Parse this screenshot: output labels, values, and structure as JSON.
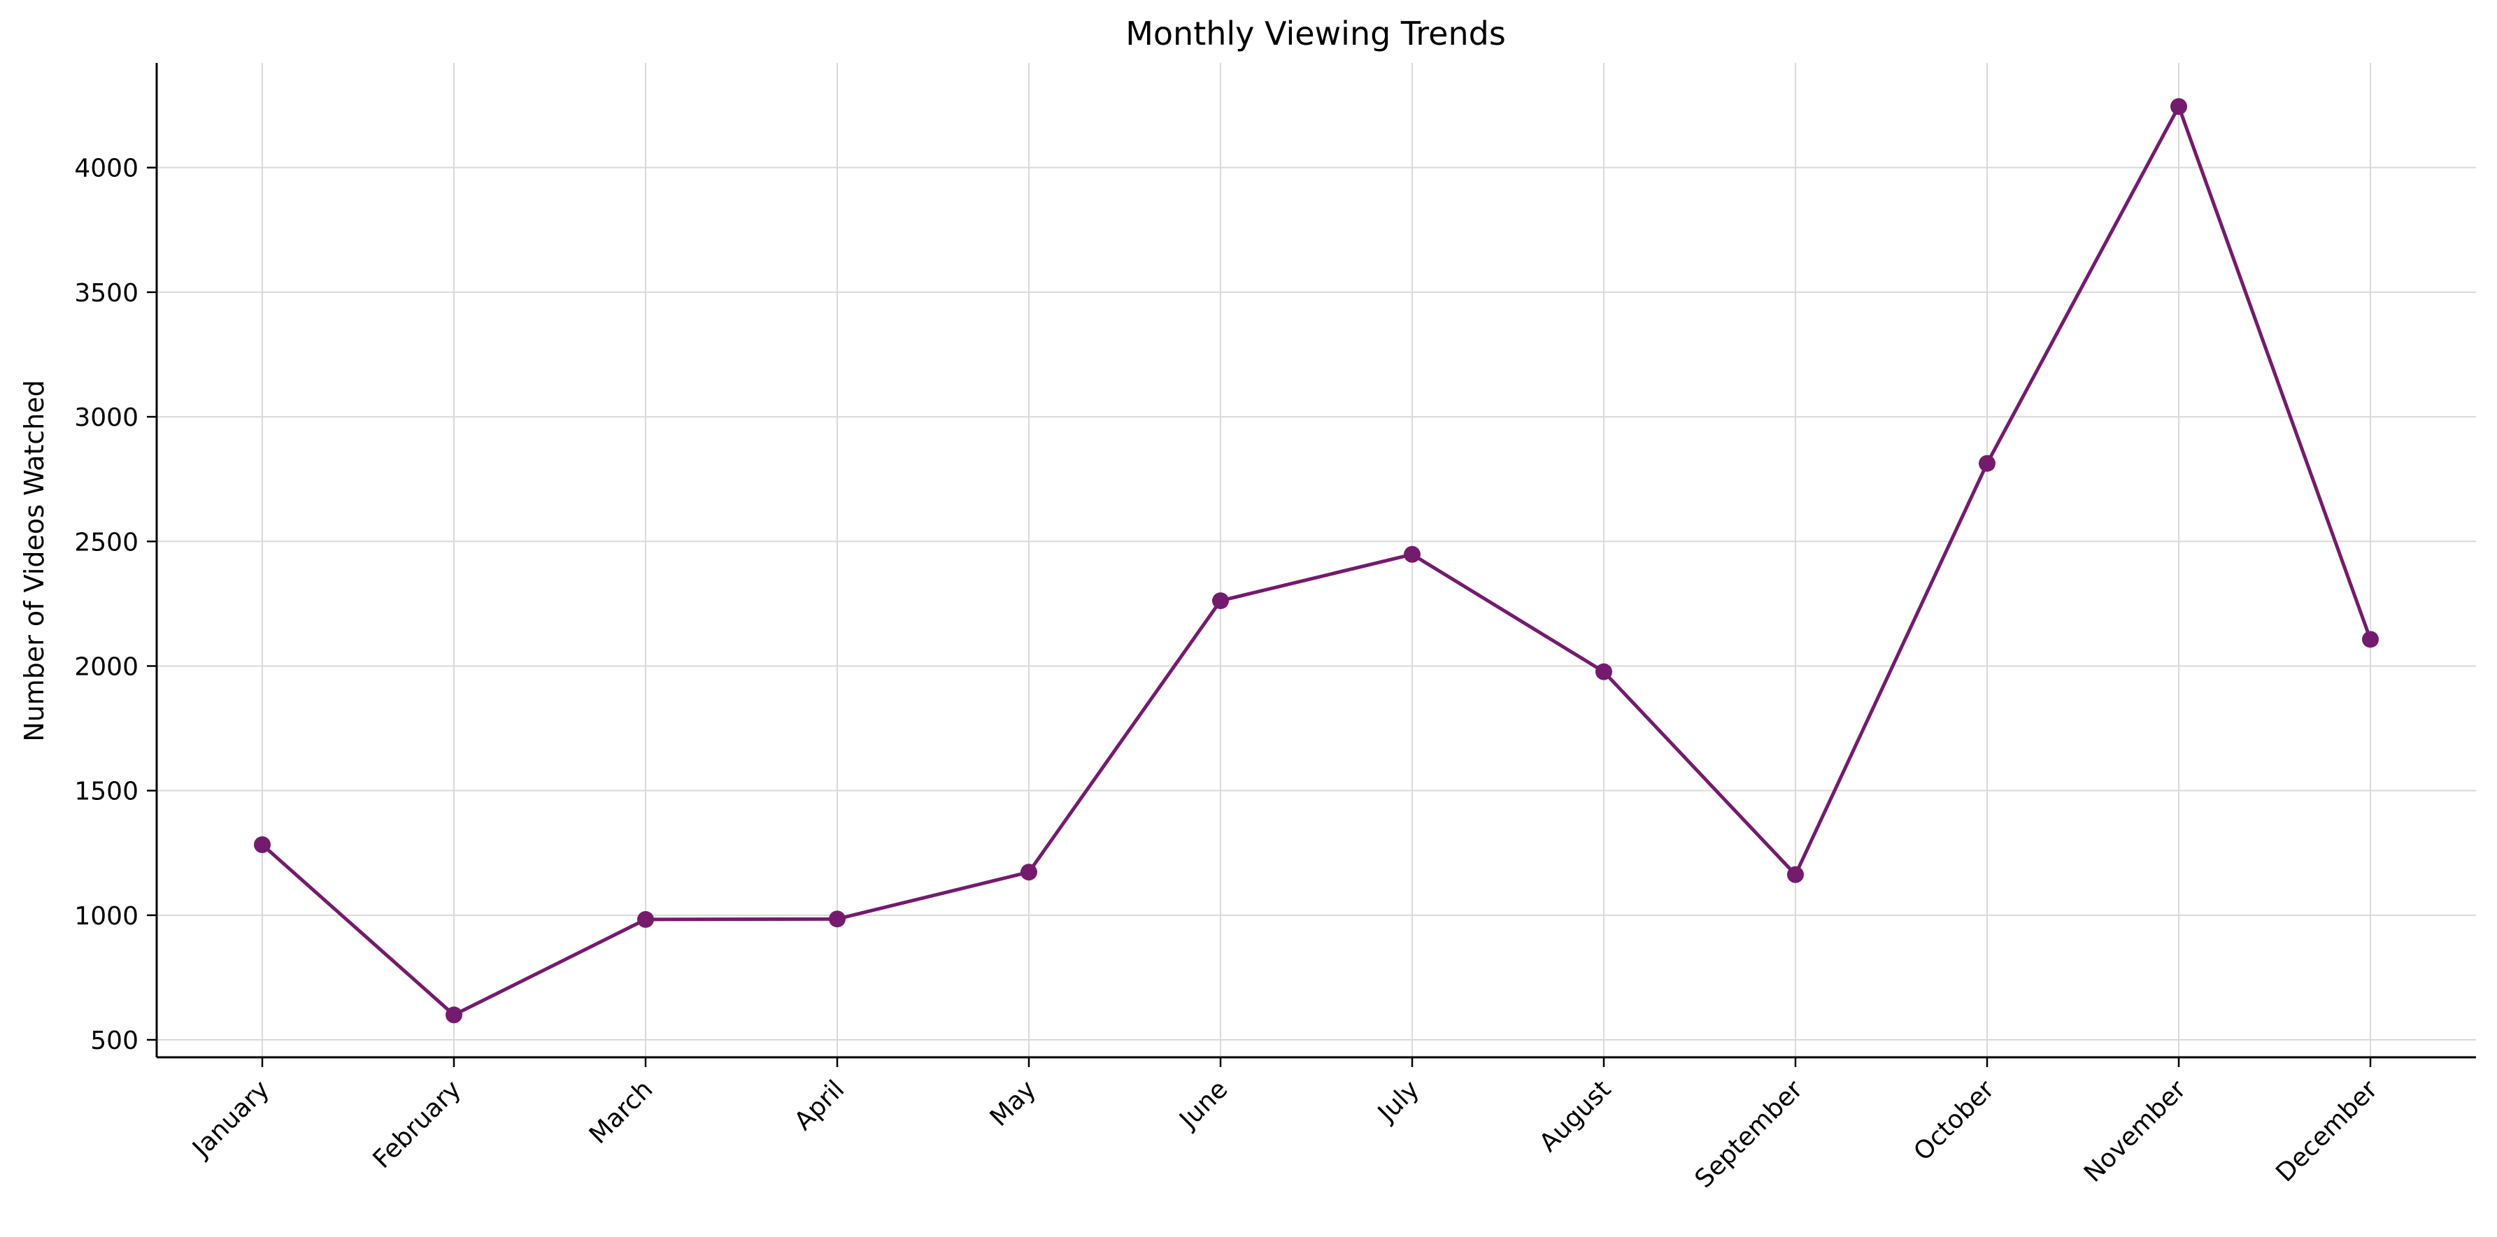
{
  "chart_data": {
    "type": "line",
    "title": "Monthly Viewing Trends",
    "xlabel": "",
    "ylabel": "Number of Videos Watched",
    "categories": [
      "January",
      "February",
      "March",
      "April",
      "May",
      "June",
      "July",
      "August",
      "September",
      "October",
      "November",
      "December"
    ],
    "series": [
      {
        "values": [
          1283,
          600,
          983,
          985,
          1173,
          2262,
          2448,
          1977,
          1163,
          2813,
          4245,
          2107
        ]
      }
    ],
    "ylim": [
      430,
      4420
    ],
    "yticks": [
      "500",
      "1000",
      "1500",
      "2000",
      "2500",
      "3000",
      "3500",
      "4000"
    ],
    "grid": true,
    "legend": "none",
    "line_color": "#741b6e",
    "marker": "circle"
  }
}
